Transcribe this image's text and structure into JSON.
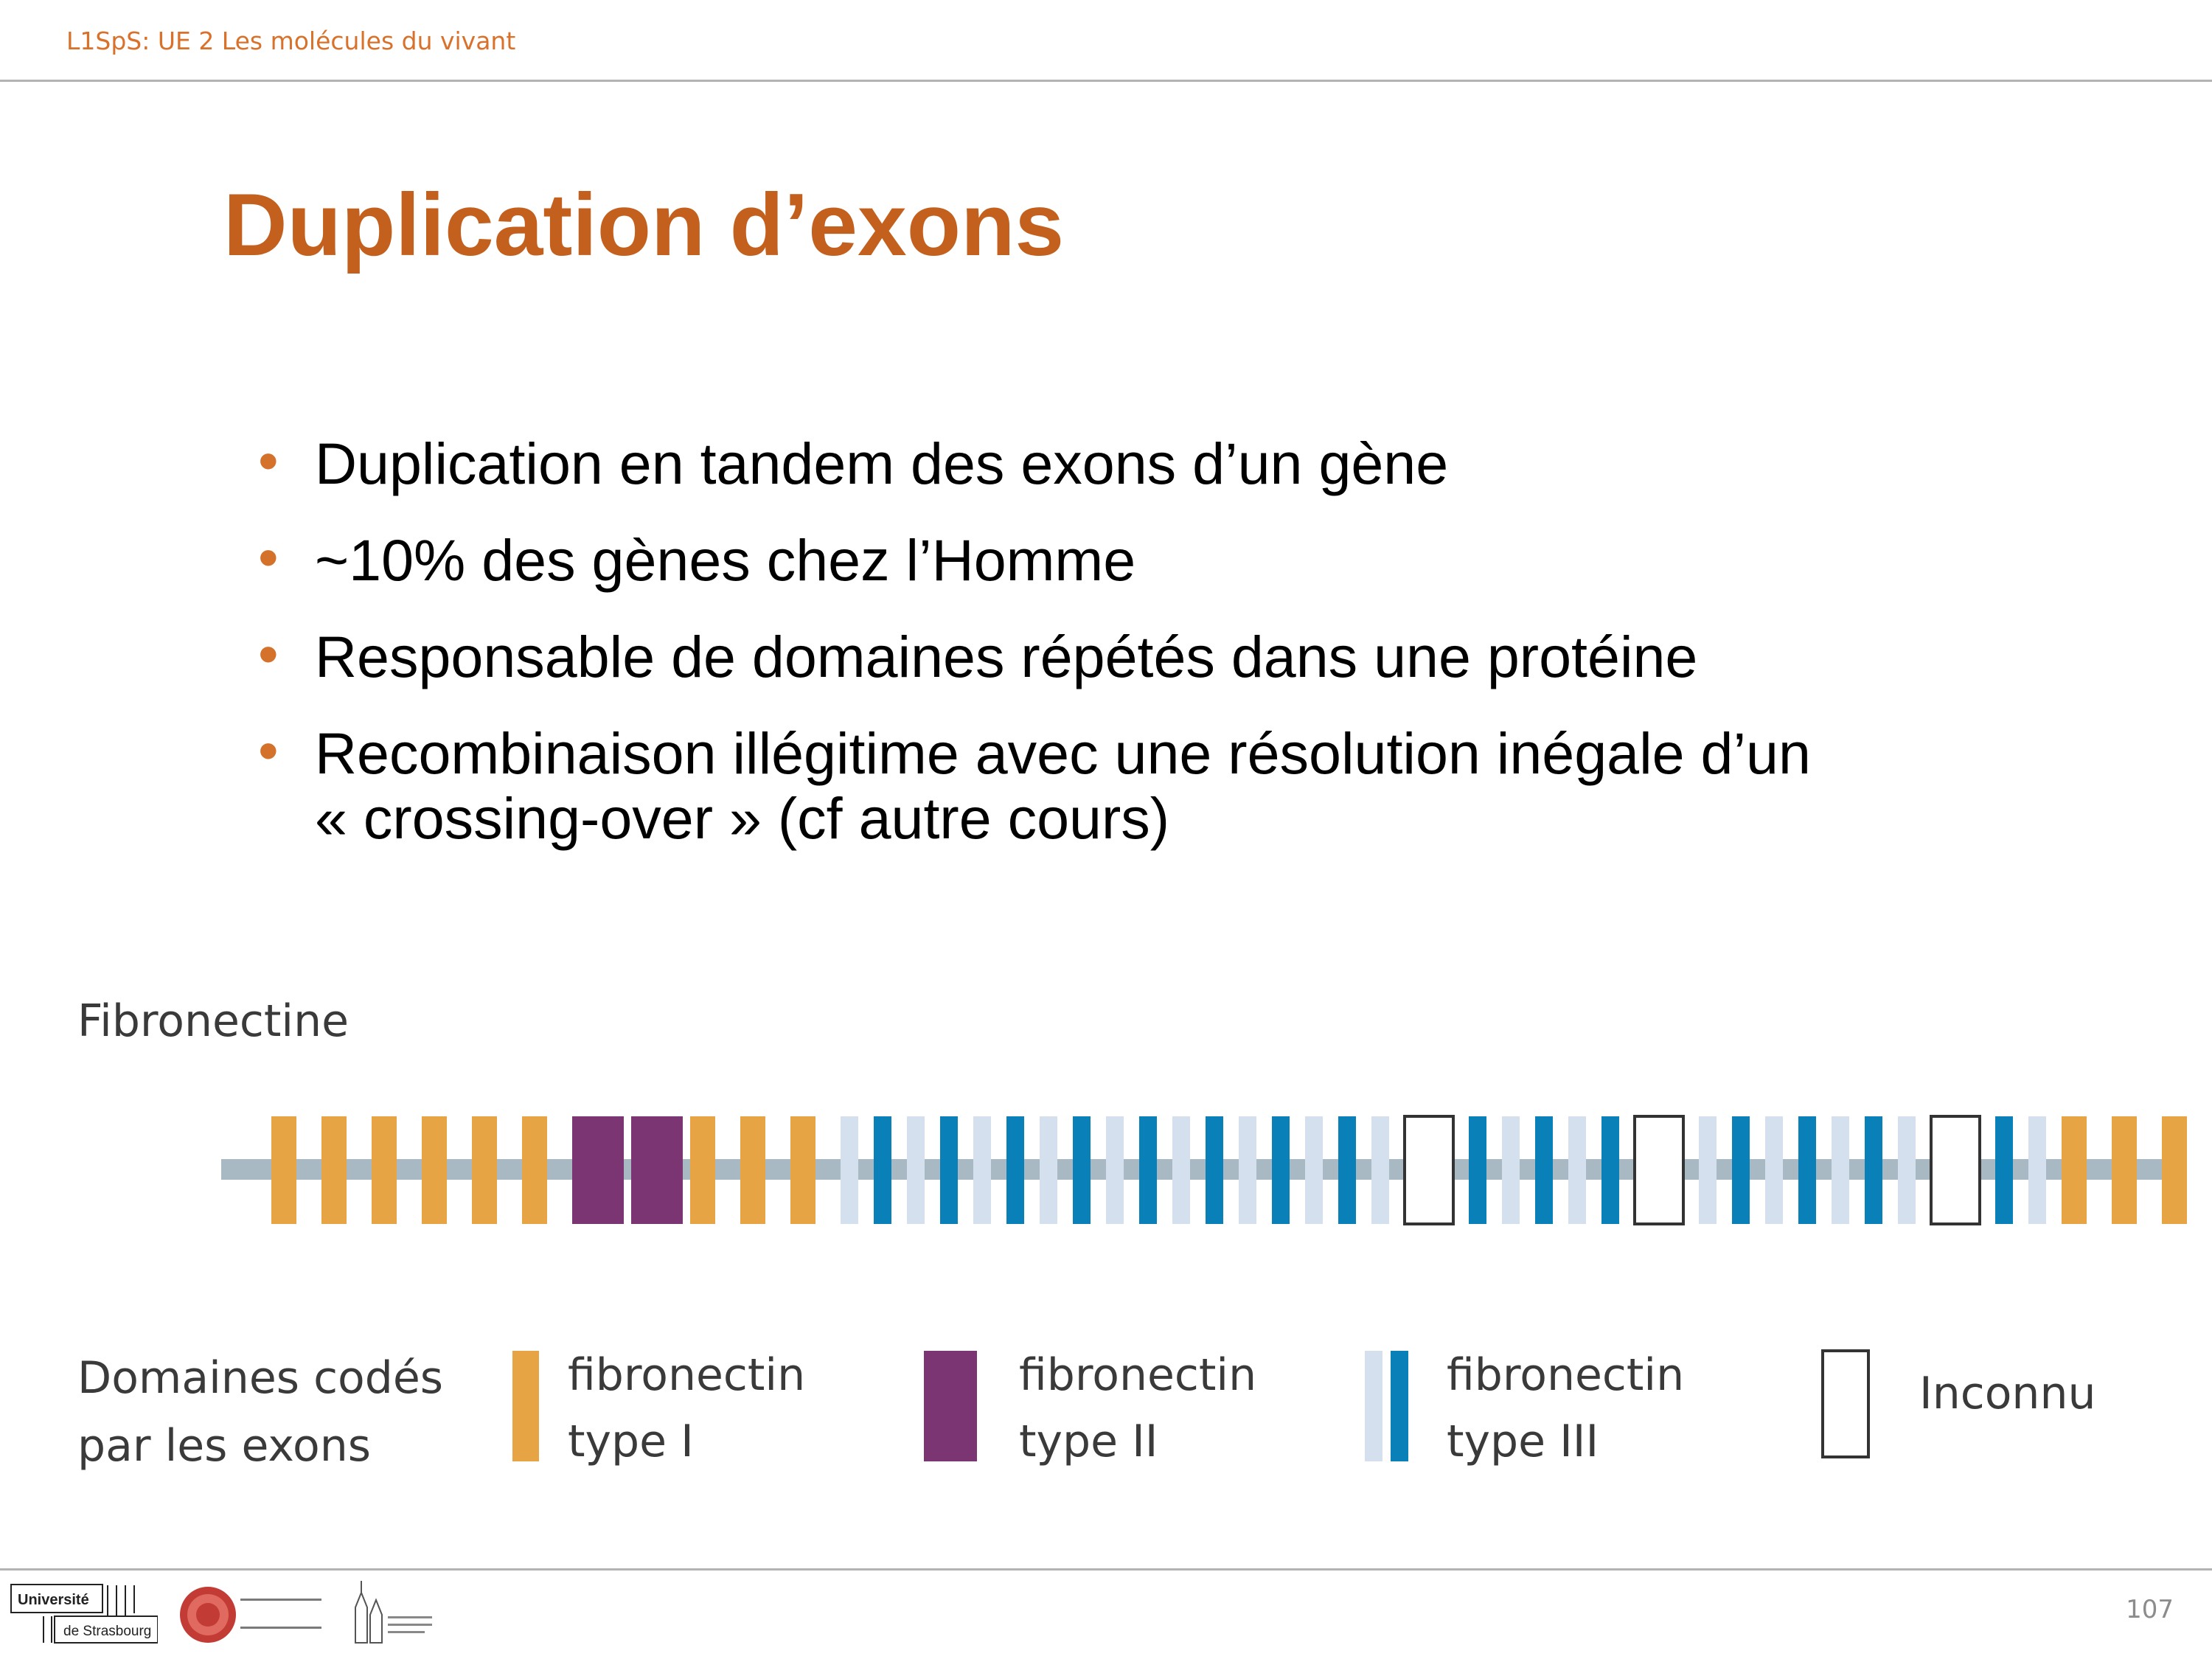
{
  "header": {
    "course": "L1SpS: UE 2 Les molécules du vivant"
  },
  "slide": {
    "title": "Duplication d’exons",
    "bullets": [
      {
        "text": "Duplication en tandem des exons d’un gène"
      },
      {
        "text": "~10% des gènes chez l’Homme"
      },
      {
        "text": "Responsable de domaines répétés dans une protéine"
      },
      {
        "line1": "Recombinaison illégitime avec une résolution inégale d’un",
        "line2": "« crossing-over » (cf autre cours)"
      }
    ],
    "bullet_color": "#d4712a"
  },
  "figure": {
    "gene_name": "Fibronectine",
    "domain_sequence": [
      "I",
      "I",
      "I",
      "I",
      "I",
      "I",
      "II",
      "II",
      "I",
      "I",
      "I",
      "III",
      "III",
      "III",
      "III",
      "III",
      "III",
      "III",
      "III",
      "III",
      "III",
      "III",
      "III",
      "III",
      "III",
      "III",
      "III",
      "III",
      "U",
      "III",
      "III",
      "III",
      "III",
      "III",
      "U",
      "III",
      "III",
      "III",
      "III",
      "III",
      "III",
      "III",
      "U",
      "III",
      "III",
      "I",
      "I",
      "I"
    ],
    "legend": {
      "title_line1": "Domaines codés",
      "title_line2": "par les exons",
      "items": [
        {
          "key": "I",
          "line1": "fibronectin",
          "line2": "type I"
        },
        {
          "key": "II",
          "line1": "fibronectin",
          "line2": "type II"
        },
        {
          "key": "III",
          "line1": "fibronectin",
          "line2": "type III"
        },
        {
          "key": "U",
          "line1": "Inconnu",
          "line2": ""
        }
      ]
    },
    "colors": {
      "type_I": "#e6a444",
      "type_II": "#7b3572",
      "type_III_dark": "#0a80b8",
      "type_III_light": "#d5e0ee",
      "backbone": "#a9b9c3",
      "unknown_border": "#333333"
    }
  },
  "footer": {
    "page_number": "107",
    "logo_university": {
      "line1": "Université",
      "line2": "de Strasbourg"
    }
  }
}
